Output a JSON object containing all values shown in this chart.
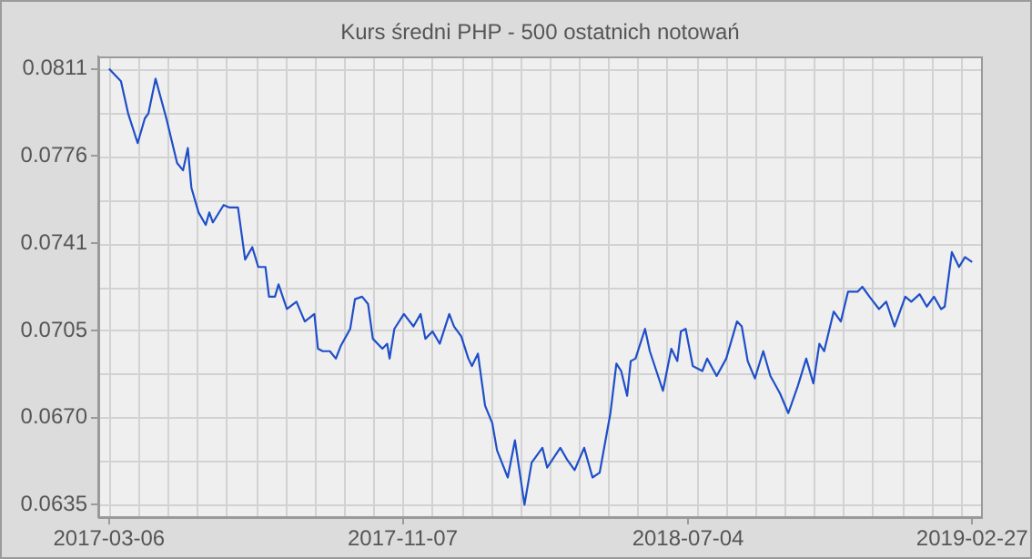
{
  "chart_data": {
    "type": "line",
    "title": "Kurs średni PHP - 500 ostatnich notowań",
    "x": [
      "2017-03-06",
      "2017-03-16",
      "2017-03-22",
      "2017-03-30",
      "2017-04-05",
      "2017-04-08",
      "2017-04-14",
      "2017-04-23",
      "2017-05-02",
      "2017-05-07",
      "2017-05-11",
      "2017-05-14",
      "2017-05-20",
      "2017-05-26",
      "2017-05-29",
      "2017-06-01",
      "2017-06-10",
      "2017-06-15",
      "2017-06-22",
      "2017-06-28",
      "2017-07-04",
      "2017-07-09",
      "2017-07-15",
      "2017-07-18",
      "2017-07-23",
      "2017-07-26",
      "2017-08-02",
      "2017-08-10",
      "2017-08-17",
      "2017-08-25",
      "2017-08-28",
      "2017-09-01",
      "2017-09-07",
      "2017-09-12",
      "2017-09-16",
      "2017-09-24",
      "2017-09-28",
      "2017-10-04",
      "2017-10-09",
      "2017-10-13",
      "2017-10-21",
      "2017-10-25",
      "2017-10-27",
      "2017-10-31",
      "2017-11-08",
      "2017-11-16",
      "2017-11-22",
      "2017-11-26",
      "2017-12-02",
      "2017-12-08",
      "2017-12-16",
      "2017-12-20",
      "2017-12-26",
      "2018-01-01",
      "2018-01-04",
      "2018-01-09",
      "2018-01-15",
      "2018-01-21",
      "2018-01-25",
      "2018-02-03",
      "2018-02-09",
      "2018-02-17",
      "2018-02-23",
      "2018-03-04",
      "2018-03-08",
      "2018-03-19",
      "2018-03-25",
      "2018-03-31",
      "2018-04-08",
      "2018-04-15",
      "2018-04-21",
      "2018-04-30",
      "2018-05-05",
      "2018-05-09",
      "2018-05-14",
      "2018-05-17",
      "2018-05-21",
      "2018-05-29",
      "2018-06-02",
      "2018-06-13",
      "2018-06-20",
      "2018-06-25",
      "2018-06-28",
      "2018-07-02",
      "2018-07-08",
      "2018-07-16",
      "2018-07-20",
      "2018-07-28",
      "2018-08-05",
      "2018-08-14",
      "2018-08-18",
      "2018-08-23",
      "2018-08-29",
      "2018-09-05",
      "2018-09-11",
      "2018-09-19",
      "2018-09-26",
      "2018-10-04",
      "2018-10-11",
      "2018-10-17",
      "2018-10-22",
      "2018-10-26",
      "2018-11-03",
      "2018-11-09",
      "2018-11-15",
      "2018-11-23",
      "2018-11-27",
      "2018-12-03",
      "2018-12-11",
      "2018-12-17",
      "2018-12-24",
      "2019-01-02",
      "2019-01-07",
      "2019-01-14",
      "2019-01-20",
      "2019-01-26",
      "2019-02-01",
      "2019-02-04",
      "2019-02-10",
      "2019-02-16",
      "2019-02-21",
      "2019-02-27"
    ],
    "series": [
      {
        "color": "#1f4fc8",
        "values": [
          0.0811,
          0.0806,
          0.0793,
          0.0781,
          0.0791,
          0.0793,
          0.0807,
          0.0791,
          0.0773,
          0.077,
          0.0779,
          0.0763,
          0.0753,
          0.0748,
          0.0753,
          0.0749,
          0.0756,
          0.0755,
          0.0755,
          0.0734,
          0.0739,
          0.0731,
          0.0731,
          0.0719,
          0.0719,
          0.0724,
          0.0714,
          0.0717,
          0.0709,
          0.0712,
          0.0698,
          0.0697,
          0.0697,
          0.0694,
          0.0699,
          0.0706,
          0.0718,
          0.0719,
          0.0716,
          0.0702,
          0.0698,
          0.07,
          0.0694,
          0.0706,
          0.0712,
          0.0707,
          0.0712,
          0.0702,
          0.0705,
          0.07,
          0.0712,
          0.0707,
          0.0703,
          0.0694,
          0.0691,
          0.0696,
          0.0675,
          0.0668,
          0.0657,
          0.0646,
          0.0661,
          0.0635,
          0.0652,
          0.0658,
          0.065,
          0.0658,
          0.0653,
          0.0649,
          0.0658,
          0.0646,
          0.0648,
          0.0672,
          0.0692,
          0.0689,
          0.0679,
          0.0693,
          0.0694,
          0.0706,
          0.0697,
          0.0681,
          0.0698,
          0.0693,
          0.0705,
          0.0706,
          0.0691,
          0.0689,
          0.0694,
          0.0687,
          0.0694,
          0.0709,
          0.0707,
          0.0693,
          0.0686,
          0.0697,
          0.0687,
          0.068,
          0.0672,
          0.0683,
          0.0694,
          0.0684,
          0.07,
          0.0697,
          0.0713,
          0.0709,
          0.0721,
          0.0721,
          0.0723,
          0.0719,
          0.0714,
          0.0717,
          0.0707,
          0.0719,
          0.0717,
          0.072,
          0.0715,
          0.0719,
          0.0714,
          0.0715,
          0.0737,
          0.0731,
          0.0735,
          0.0733
        ]
      }
    ],
    "xlim": [
      "2017-02-25",
      "2019-03-07"
    ],
    "xticks": [
      "2017-03-06",
      "2017-11-07",
      "2018-07-04",
      "2019-02-27"
    ],
    "ylim": [
      0.063,
      0.0816
    ],
    "yticks": [
      {
        "value": 0.0635,
        "label": "0.0635"
      },
      {
        "value": 0.06702,
        "label": "0.0670"
      },
      {
        "value": 0.07054,
        "label": "0.0705"
      },
      {
        "value": 0.07406,
        "label": "0.0741"
      },
      {
        "value": 0.07758,
        "label": "0.0776"
      },
      {
        "value": 0.0811,
        "label": "0.0811"
      }
    ],
    "grid": true,
    "marker": "none",
    "line_style": "solid"
  }
}
